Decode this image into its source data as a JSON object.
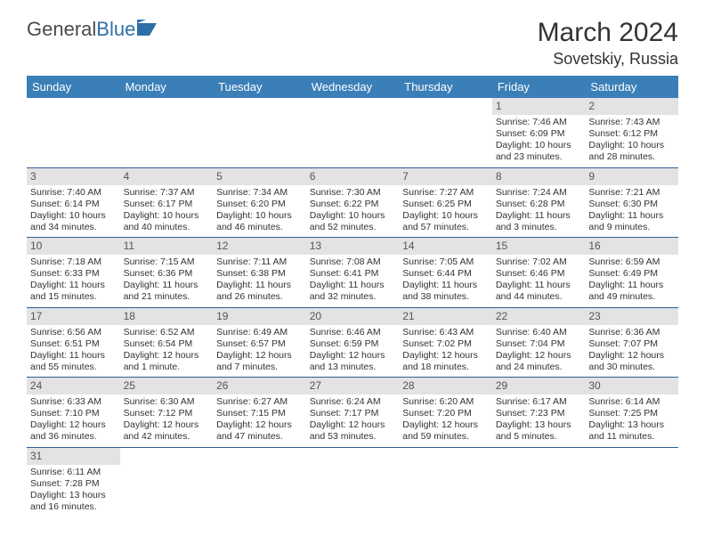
{
  "brand": {
    "name_a": "General",
    "name_b": "Blue"
  },
  "title": {
    "month_year": "March 2024",
    "location": "Sovetskiy, Russia"
  },
  "colors": {
    "header_bg": "#3b7fb8",
    "header_fg": "#ffffff",
    "daynum_bg": "#e3e3e3",
    "row_border": "#2f5f8f",
    "brand_blue": "#2f6fa8"
  },
  "weekdays": [
    "Sunday",
    "Monday",
    "Tuesday",
    "Wednesday",
    "Thursday",
    "Friday",
    "Saturday"
  ],
  "weeks": [
    [
      {
        "n": "",
        "l1": "",
        "l2": "",
        "l3": "",
        "l4": ""
      },
      {
        "n": "",
        "l1": "",
        "l2": "",
        "l3": "",
        "l4": ""
      },
      {
        "n": "",
        "l1": "",
        "l2": "",
        "l3": "",
        "l4": ""
      },
      {
        "n": "",
        "l1": "",
        "l2": "",
        "l3": "",
        "l4": ""
      },
      {
        "n": "",
        "l1": "",
        "l2": "",
        "l3": "",
        "l4": ""
      },
      {
        "n": "1",
        "l1": "Sunrise: 7:46 AM",
        "l2": "Sunset: 6:09 PM",
        "l3": "Daylight: 10 hours",
        "l4": "and 23 minutes."
      },
      {
        "n": "2",
        "l1": "Sunrise: 7:43 AM",
        "l2": "Sunset: 6:12 PM",
        "l3": "Daylight: 10 hours",
        "l4": "and 28 minutes."
      }
    ],
    [
      {
        "n": "3",
        "l1": "Sunrise: 7:40 AM",
        "l2": "Sunset: 6:14 PM",
        "l3": "Daylight: 10 hours",
        "l4": "and 34 minutes."
      },
      {
        "n": "4",
        "l1": "Sunrise: 7:37 AM",
        "l2": "Sunset: 6:17 PM",
        "l3": "Daylight: 10 hours",
        "l4": "and 40 minutes."
      },
      {
        "n": "5",
        "l1": "Sunrise: 7:34 AM",
        "l2": "Sunset: 6:20 PM",
        "l3": "Daylight: 10 hours",
        "l4": "and 46 minutes."
      },
      {
        "n": "6",
        "l1": "Sunrise: 7:30 AM",
        "l2": "Sunset: 6:22 PM",
        "l3": "Daylight: 10 hours",
        "l4": "and 52 minutes."
      },
      {
        "n": "7",
        "l1": "Sunrise: 7:27 AM",
        "l2": "Sunset: 6:25 PM",
        "l3": "Daylight: 10 hours",
        "l4": "and 57 minutes."
      },
      {
        "n": "8",
        "l1": "Sunrise: 7:24 AM",
        "l2": "Sunset: 6:28 PM",
        "l3": "Daylight: 11 hours",
        "l4": "and 3 minutes."
      },
      {
        "n": "9",
        "l1": "Sunrise: 7:21 AM",
        "l2": "Sunset: 6:30 PM",
        "l3": "Daylight: 11 hours",
        "l4": "and 9 minutes."
      }
    ],
    [
      {
        "n": "10",
        "l1": "Sunrise: 7:18 AM",
        "l2": "Sunset: 6:33 PM",
        "l3": "Daylight: 11 hours",
        "l4": "and 15 minutes."
      },
      {
        "n": "11",
        "l1": "Sunrise: 7:15 AM",
        "l2": "Sunset: 6:36 PM",
        "l3": "Daylight: 11 hours",
        "l4": "and 21 minutes."
      },
      {
        "n": "12",
        "l1": "Sunrise: 7:11 AM",
        "l2": "Sunset: 6:38 PM",
        "l3": "Daylight: 11 hours",
        "l4": "and 26 minutes."
      },
      {
        "n": "13",
        "l1": "Sunrise: 7:08 AM",
        "l2": "Sunset: 6:41 PM",
        "l3": "Daylight: 11 hours",
        "l4": "and 32 minutes."
      },
      {
        "n": "14",
        "l1": "Sunrise: 7:05 AM",
        "l2": "Sunset: 6:44 PM",
        "l3": "Daylight: 11 hours",
        "l4": "and 38 minutes."
      },
      {
        "n": "15",
        "l1": "Sunrise: 7:02 AM",
        "l2": "Sunset: 6:46 PM",
        "l3": "Daylight: 11 hours",
        "l4": "and 44 minutes."
      },
      {
        "n": "16",
        "l1": "Sunrise: 6:59 AM",
        "l2": "Sunset: 6:49 PM",
        "l3": "Daylight: 11 hours",
        "l4": "and 49 minutes."
      }
    ],
    [
      {
        "n": "17",
        "l1": "Sunrise: 6:56 AM",
        "l2": "Sunset: 6:51 PM",
        "l3": "Daylight: 11 hours",
        "l4": "and 55 minutes."
      },
      {
        "n": "18",
        "l1": "Sunrise: 6:52 AM",
        "l2": "Sunset: 6:54 PM",
        "l3": "Daylight: 12 hours",
        "l4": "and 1 minute."
      },
      {
        "n": "19",
        "l1": "Sunrise: 6:49 AM",
        "l2": "Sunset: 6:57 PM",
        "l3": "Daylight: 12 hours",
        "l4": "and 7 minutes."
      },
      {
        "n": "20",
        "l1": "Sunrise: 6:46 AM",
        "l2": "Sunset: 6:59 PM",
        "l3": "Daylight: 12 hours",
        "l4": "and 13 minutes."
      },
      {
        "n": "21",
        "l1": "Sunrise: 6:43 AM",
        "l2": "Sunset: 7:02 PM",
        "l3": "Daylight: 12 hours",
        "l4": "and 18 minutes."
      },
      {
        "n": "22",
        "l1": "Sunrise: 6:40 AM",
        "l2": "Sunset: 7:04 PM",
        "l3": "Daylight: 12 hours",
        "l4": "and 24 minutes."
      },
      {
        "n": "23",
        "l1": "Sunrise: 6:36 AM",
        "l2": "Sunset: 7:07 PM",
        "l3": "Daylight: 12 hours",
        "l4": "and 30 minutes."
      }
    ],
    [
      {
        "n": "24",
        "l1": "Sunrise: 6:33 AM",
        "l2": "Sunset: 7:10 PM",
        "l3": "Daylight: 12 hours",
        "l4": "and 36 minutes."
      },
      {
        "n": "25",
        "l1": "Sunrise: 6:30 AM",
        "l2": "Sunset: 7:12 PM",
        "l3": "Daylight: 12 hours",
        "l4": "and 42 minutes."
      },
      {
        "n": "26",
        "l1": "Sunrise: 6:27 AM",
        "l2": "Sunset: 7:15 PM",
        "l3": "Daylight: 12 hours",
        "l4": "and 47 minutes."
      },
      {
        "n": "27",
        "l1": "Sunrise: 6:24 AM",
        "l2": "Sunset: 7:17 PM",
        "l3": "Daylight: 12 hours",
        "l4": "and 53 minutes."
      },
      {
        "n": "28",
        "l1": "Sunrise: 6:20 AM",
        "l2": "Sunset: 7:20 PM",
        "l3": "Daylight: 12 hours",
        "l4": "and 59 minutes."
      },
      {
        "n": "29",
        "l1": "Sunrise: 6:17 AM",
        "l2": "Sunset: 7:23 PM",
        "l3": "Daylight: 13 hours",
        "l4": "and 5 minutes."
      },
      {
        "n": "30",
        "l1": "Sunrise: 6:14 AM",
        "l2": "Sunset: 7:25 PM",
        "l3": "Daylight: 13 hours",
        "l4": "and 11 minutes."
      }
    ],
    [
      {
        "n": "31",
        "l1": "Sunrise: 6:11 AM",
        "l2": "Sunset: 7:28 PM",
        "l3": "Daylight: 13 hours",
        "l4": "and 16 minutes."
      },
      {
        "n": "",
        "l1": "",
        "l2": "",
        "l3": "",
        "l4": ""
      },
      {
        "n": "",
        "l1": "",
        "l2": "",
        "l3": "",
        "l4": ""
      },
      {
        "n": "",
        "l1": "",
        "l2": "",
        "l3": "",
        "l4": ""
      },
      {
        "n": "",
        "l1": "",
        "l2": "",
        "l3": "",
        "l4": ""
      },
      {
        "n": "",
        "l1": "",
        "l2": "",
        "l3": "",
        "l4": ""
      },
      {
        "n": "",
        "l1": "",
        "l2": "",
        "l3": "",
        "l4": ""
      }
    ]
  ]
}
